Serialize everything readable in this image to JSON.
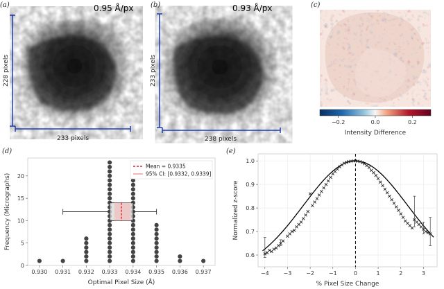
{
  "panels": {
    "a": {
      "label": "(a)",
      "pixel_size": "0.95 Å/px",
      "height_label": "228 pixels",
      "width_label": "233 pixels"
    },
    "b": {
      "label": "(b)",
      "pixel_size": "0.93 Å/px",
      "height_label": "233 pixels",
      "width_label": "238 pixels"
    },
    "c": {
      "label": "(c)",
      "colorbar_label": "Intensity Difference",
      "colorbar_ticks": [
        "−0.2",
        "0.0",
        "0.2"
      ],
      "colorbar_range": [
        -0.3,
        0.3
      ],
      "colors": {
        "neg": "#2166ac",
        "mid": "#f7f7f7",
        "pos": "#b2182b"
      }
    },
    "d": {
      "label": "(d)"
    },
    "e": {
      "label": "(e)"
    }
  },
  "chart_data": [
    {
      "type": "scatter",
      "panel": "d",
      "subtype": "dot-strip with boxplot",
      "xlabel": "Optimal Pixel Size (Å)",
      "ylabel": "Frequency (Micrographs)",
      "xlim": [
        0.9295,
        0.9375
      ],
      "ylim": [
        0,
        24
      ],
      "xticks": [
        0.93,
        0.931,
        0.932,
        0.933,
        0.934,
        0.935,
        0.936,
        0.937
      ],
      "xtick_labels": [
        "0.930",
        "0.931",
        "0.932",
        "0.933",
        "0.934",
        "0.935",
        "0.936",
        "0.937"
      ],
      "yticks": [
        0,
        5,
        10,
        15,
        20
      ],
      "categories": [
        0.93,
        0.931,
        0.932,
        0.933,
        0.934,
        0.935,
        0.936,
        0.937
      ],
      "counts": [
        1,
        1,
        6,
        23,
        22,
        9,
        2,
        1
      ],
      "box": {
        "whisker_low": 0.931,
        "q1": 0.933,
        "median": 0.9335,
        "q3": 0.934,
        "whisker_high": 0.935,
        "y_low": 10,
        "y_high": 14,
        "y_center": 12
      },
      "mean": 0.9335,
      "ci": [
        0.9332,
        0.9339
      ],
      "legend": {
        "position": "top-right",
        "entries": [
          "Mean = 0.9335",
          "95% CI: [0.9332, 0.9339]"
        ]
      },
      "colors": {
        "dots": "#444444",
        "mean": "#d62728",
        "ci": "#f4b6b6",
        "box": "#d9d9d9"
      }
    },
    {
      "type": "scatter",
      "panel": "e",
      "xlabel": "% Pixel Size Change",
      "ylabel": "Normalized z-score",
      "xlim": [
        -4.3,
        3.6
      ],
      "ylim": [
        0.55,
        1.03
      ],
      "xticks": [
        -4,
        -3,
        -2,
        -1,
        0,
        1,
        2,
        3
      ],
      "xtick_labels": [
        "−4",
        "−3",
        "−2",
        "−1",
        "0",
        "1",
        "2",
        "3"
      ],
      "yticks": [
        0.6,
        0.7,
        0.8,
        0.9,
        1.0
      ],
      "ytick_labels": [
        "0.6",
        "0.7",
        "0.8",
        "0.9",
        "1.0"
      ],
      "grid": true,
      "vline": 0,
      "fit": {
        "type": "gaussian",
        "peak": 1.0,
        "sigma": 2.3,
        "offset": 0.52
      },
      "points": [
        [
          -4.0,
          0.605
        ],
        [
          -3.9,
          0.61
        ],
        [
          -3.8,
          0.62
        ],
        [
          -3.7,
          0.615
        ],
        [
          -3.6,
          0.625
        ],
        [
          -3.5,
          0.63
        ],
        [
          -3.4,
          0.64
        ],
        [
          -3.3,
          0.65
        ],
        [
          -3.2,
          0.66
        ],
        [
          -3.0,
          0.68
        ],
        [
          -2.9,
          0.69
        ],
        [
          -2.8,
          0.7
        ],
        [
          -2.7,
          0.705
        ],
        [
          -2.6,
          0.72
        ],
        [
          -2.5,
          0.73
        ],
        [
          -2.4,
          0.74
        ],
        [
          -2.3,
          0.755
        ],
        [
          -2.2,
          0.77
        ],
        [
          -2.1,
          0.785
        ],
        [
          -2.0,
          0.86
        ],
        [
          -1.9,
          0.81
        ],
        [
          -1.8,
          0.825
        ],
        [
          -1.7,
          0.84
        ],
        [
          -1.6,
          0.855
        ],
        [
          -1.5,
          0.87
        ],
        [
          -1.4,
          0.885
        ],
        [
          -1.3,
          0.9
        ],
        [
          -1.2,
          0.915
        ],
        [
          -1.1,
          0.93
        ],
        [
          -1.0,
          0.945
        ],
        [
          -0.9,
          0.955
        ],
        [
          -0.8,
          0.965
        ],
        [
          -0.7,
          0.975
        ],
        [
          -0.6,
          0.983
        ],
        [
          -0.5,
          0.99
        ],
        [
          -0.4,
          0.994
        ],
        [
          -0.3,
          0.997
        ],
        [
          -0.2,
          0.999
        ],
        [
          -0.1,
          1.0
        ],
        [
          0.0,
          1.0
        ],
        [
          0.1,
          0.999
        ],
        [
          0.2,
          0.997
        ],
        [
          0.3,
          0.993
        ],
        [
          0.4,
          0.988
        ],
        [
          0.5,
          0.98
        ],
        [
          0.6,
          0.972
        ],
        [
          0.7,
          0.96
        ],
        [
          0.8,
          0.95
        ],
        [
          0.9,
          0.938
        ],
        [
          1.0,
          0.925
        ],
        [
          1.1,
          0.91
        ],
        [
          1.2,
          0.895
        ],
        [
          1.3,
          0.88
        ],
        [
          1.4,
          0.865
        ],
        [
          1.5,
          0.85
        ],
        [
          1.6,
          0.835
        ],
        [
          1.7,
          0.82
        ],
        [
          1.8,
          0.805
        ],
        [
          1.9,
          0.79
        ],
        [
          2.0,
          0.775
        ],
        [
          2.1,
          0.76
        ],
        [
          2.2,
          0.745
        ],
        [
          2.3,
          0.735
        ],
        [
          2.4,
          0.725
        ],
        [
          2.5,
          0.715
        ],
        [
          2.6,
          0.75
        ],
        [
          2.7,
          0.74
        ],
        [
          2.8,
          0.73
        ],
        [
          2.9,
          0.72
        ],
        [
          3.0,
          0.71
        ],
        [
          3.1,
          0.7
        ],
        [
          3.2,
          0.695
        ],
        [
          3.3,
          0.69
        ]
      ],
      "error_bars": [
        [
          -4.0,
          0.59,
          0.675
        ],
        [
          -3.3,
          0.64,
          0.665
        ],
        [
          2.6,
          0.72,
          0.85
        ],
        [
          3.0,
          0.69,
          0.74
        ],
        [
          3.3,
          0.64,
          0.76
        ]
      ],
      "colors": {
        "points": "#222222",
        "fit": "#000000",
        "vline": "#000000"
      }
    }
  ]
}
